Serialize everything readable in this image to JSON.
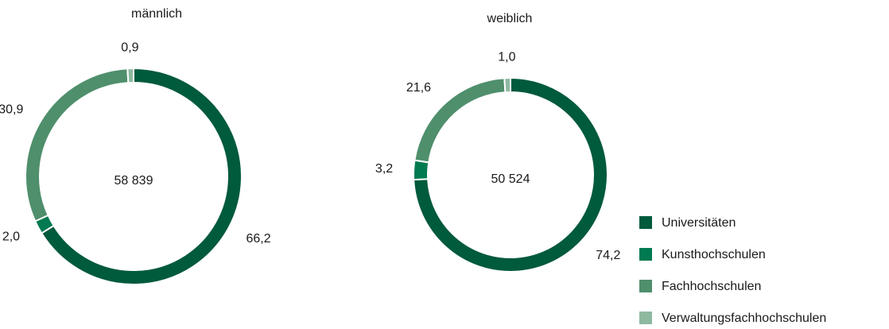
{
  "chart_data": [
    {
      "type": "pie",
      "title": "männlich",
      "center_label": "58 839",
      "categories": [
        "Universitäten",
        "Kunsthochschulen",
        "Fachhochschulen",
        "Verwaltungsfachhochschulen"
      ],
      "values": [
        66.2,
        2.0,
        30.9,
        0.9
      ],
      "value_labels": [
        "66,2",
        "2,0",
        "30,9",
        "0,9"
      ],
      "colors": [
        "#005a3c",
        "#007a50",
        "#4f8f6c",
        "#8fb8a0"
      ]
    },
    {
      "type": "pie",
      "title": "weiblich",
      "center_label": "50 524",
      "categories": [
        "Universitäten",
        "Kunsthochschulen",
        "Fachhochschulen",
        "Verwaltungsfachhochschulen"
      ],
      "values": [
        74.2,
        3.2,
        21.6,
        1.0
      ],
      "value_labels": [
        "74,2",
        "3,2",
        "21,6",
        "1,0"
      ],
      "colors": [
        "#005a3c",
        "#007a50",
        "#4f8f6c",
        "#8fb8a0"
      ]
    }
  ]
}
